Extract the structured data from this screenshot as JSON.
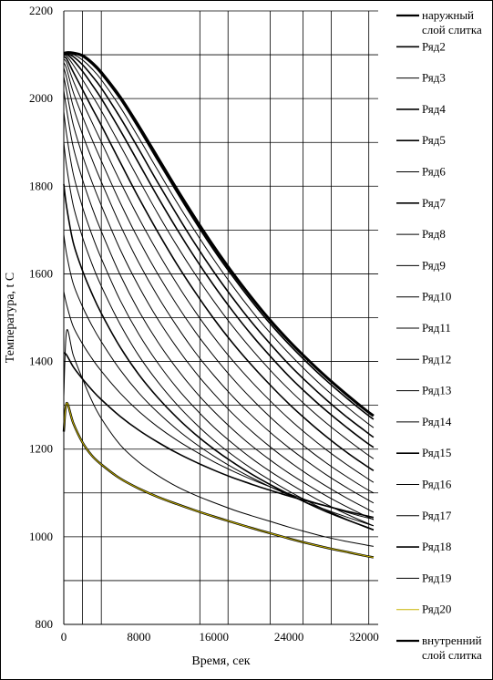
{
  "chart_data": {
    "type": "line",
    "title": "",
    "xlabel": "Время, сек",
    "ylabel": "Температура, t С",
    "xlim": [
      0,
      33500
    ],
    "ylim": [
      800,
      2200
    ],
    "x_ticks": [
      0,
      8000,
      16000,
      24000,
      32000
    ],
    "y_ticks": [
      800,
      1000,
      1200,
      1400,
      1600,
      1800,
      2000,
      2200
    ],
    "x_grid": [
      0,
      2000,
      4000,
      14500,
      17500,
      22000,
      25500,
      28500,
      32500
    ],
    "y_grid": [
      900,
      1000,
      1100,
      1200,
      1300,
      1400,
      1500,
      1600,
      1700,
      1800,
      1900,
      2000,
      2100,
      2200
    ],
    "legend_position": "right",
    "x": [
      0,
      300,
      1000,
      2000,
      3000,
      4000,
      6000,
      8000,
      10000,
      12000,
      14000,
      16000,
      18000,
      20000,
      22000,
      24000,
      26000,
      28000,
      30000,
      32000,
      33000
    ],
    "series": [
      {
        "name": "наружный слой слитка",
        "color": "#000000",
        "width": 3.0,
        "values": [
          2103,
          2105,
          2104,
          2098,
          2082,
          2060,
          2004,
          1937,
          1866,
          1795,
          1727,
          1662,
          1602,
          1546,
          1494,
          1447,
          1404,
          1364,
          1327,
          1292,
          1276
        ]
      },
      {
        "name": "Ряд2",
        "color": "#000000",
        "width": 1.6,
        "values": [
          2103,
          2105,
          2104,
          2096,
          2079,
          2056,
          1999,
          1931,
          1859,
          1788,
          1719,
          1654,
          1594,
          1538,
          1486,
          1439,
          1396,
          1356,
          1319,
          1284,
          1268
        ]
      },
      {
        "name": "Ряд3",
        "color": "#000000",
        "width": 1.0,
        "values": [
          2102,
          2104,
          2101,
          2088,
          2068,
          2043,
          1981,
          1910,
          1837,
          1765,
          1697,
          1632,
          1572,
          1516,
          1465,
          1418,
          1375,
          1335,
          1299,
          1265,
          1249
        ]
      },
      {
        "name": "Ряд4",
        "color": "#000000",
        "width": 1.6,
        "values": [
          2101,
          2103,
          2096,
          2077,
          2052,
          2024,
          1957,
          1884,
          1809,
          1737,
          1668,
          1604,
          1545,
          1490,
          1440,
          1393,
          1351,
          1312,
          1276,
          1243,
          1227
        ]
      },
      {
        "name": "Ряд5",
        "color": "#000000",
        "width": 1.6,
        "values": [
          2100,
          2101,
          2088,
          2062,
          2032,
          2000,
          1928,
          1852,
          1776,
          1704,
          1636,
          1573,
          1515,
          1461,
          1412,
          1366,
          1325,
          1287,
          1252,
          1219,
          1204
        ]
      },
      {
        "name": "Ряд6",
        "color": "#000000",
        "width": 1.0,
        "values": [
          2098,
          2097,
          2077,
          2043,
          2008,
          1972,
          1894,
          1815,
          1738,
          1666,
          1599,
          1537,
          1480,
          1428,
          1380,
          1336,
          1296,
          1259,
          1225,
          1193,
          1178
        ]
      },
      {
        "name": "Ряд7",
        "color": "#000000",
        "width": 1.6,
        "values": [
          2095,
          2091,
          2061,
          2020,
          1979,
          1939,
          1855,
          1773,
          1696,
          1624,
          1558,
          1497,
          1442,
          1392,
          1346,
          1303,
          1264,
          1228,
          1195,
          1165,
          1151
        ]
      },
      {
        "name": "Ряд8",
        "color": "#000000",
        "width": 1.0,
        "values": [
          2090,
          2082,
          2041,
          1992,
          1946,
          1901,
          1811,
          1727,
          1650,
          1579,
          1514,
          1455,
          1402,
          1354,
          1310,
          1269,
          1232,
          1198,
          1167,
          1138,
          1124
        ]
      },
      {
        "name": "Ряд9",
        "color": "#000000",
        "width": 1.0,
        "values": [
          2082,
          2068,
          2015,
          1959,
          1907,
          1858,
          1763,
          1677,
          1600,
          1531,
          1468,
          1412,
          1361,
          1315,
          1273,
          1235,
          1200,
          1168,
          1139,
          1112,
          1100
        ]
      },
      {
        "name": "Ряд10",
        "color": "#000000",
        "width": 1.0,
        "values": [
          2070,
          2047,
          1982,
          1918,
          1862,
          1810,
          1712,
          1625,
          1549,
          1482,
          1421,
          1368,
          1320,
          1277,
          1238,
          1203,
          1171,
          1141,
          1114,
          1089,
          1077
        ]
      },
      {
        "name": "Ряд11",
        "color": "#000000",
        "width": 1.0,
        "values": [
          2050,
          2017,
          1941,
          1870,
          1810,
          1756,
          1656,
          1571,
          1497,
          1433,
          1376,
          1326,
          1281,
          1241,
          1205,
          1172,
          1142,
          1115,
          1090,
          1067,
          1056
        ]
      },
      {
        "name": "Ряд12",
        "color": "#000000",
        "width": 1.0,
        "values": [
          2018,
          1975,
          1890,
          1815,
          1752,
          1697,
          1598,
          1515,
          1445,
          1385,
          1332,
          1286,
          1245,
          1208,
          1175,
          1145,
          1118,
          1093,
          1070,
          1049,
          1039
        ]
      },
      {
        "name": "Ряд13",
        "color": "#000000",
        "width": 1.0,
        "values": [
          1970,
          1918,
          1829,
          1752,
          1689,
          1635,
          1540,
          1462,
          1397,
          1341,
          1293,
          1250,
          1213,
          1179,
          1149,
          1122,
          1097,
          1074,
          1053,
          1034,
          1025
        ]
      },
      {
        "name": "Ряд14",
        "color": "#000000",
        "width": 1.0,
        "values": [
          1900,
          1845,
          1757,
          1683,
          1623,
          1572,
          1485,
          1413,
          1354,
          1303,
          1259,
          1220,
          1186,
          1156,
          1129,
          1104,
          1081,
          1060,
          1041,
          1023,
          1015
        ]
      },
      {
        "name": "Ряд15",
        "color": "#000000",
        "width": 1.6,
        "values": [
          1805,
          1753,
          1672,
          1607,
          1555,
          1510,
          1433,
          1370,
          1318,
          1273,
          1234,
          1200,
          1170,
          1143,
          1119,
          1097,
          1076,
          1057,
          1040,
          1024,
          1016
        ]
      },
      {
        "name": "Ряд16",
        "color": "#000000",
        "width": 1.0,
        "values": [
          1690,
          1645,
          1578,
          1525,
          1482,
          1445,
          1381,
          1328,
          1284,
          1246,
          1213,
          1184,
          1158,
          1135,
          1114,
          1095,
          1077,
          1061,
          1046,
          1032,
          1025
        ]
      },
      {
        "name": "Ряд17",
        "color": "#000000",
        "width": 1.0,
        "values": [
          1560,
          1530,
          1480,
          1440,
          1407,
          1378,
          1328,
          1286,
          1251,
          1221,
          1195,
          1171,
          1150,
          1131,
          1114,
          1098,
          1083,
          1070,
          1057,
          1045,
          1040
        ]
      },
      {
        "name": "Ряд18",
        "color": "#000000",
        "width": 1.6,
        "values": [
          1420,
          1415,
          1388,
          1360,
          1335,
          1313,
          1275,
          1243,
          1216,
          1192,
          1171,
          1152,
          1135,
          1120,
          1106,
          1093,
          1081,
          1070,
          1059,
          1049,
          1044
        ]
      },
      {
        "name": "Ряд19",
        "color": "#000000",
        "width": 1.0,
        "values": [
          1320,
          1470,
          1415,
          1360,
          1310,
          1270,
          1210,
          1170,
          1140,
          1115,
          1095,
          1078,
          1062,
          1048,
          1035,
          1022,
          1010,
          999,
          990,
          982,
          978
        ]
      },
      {
        "name": "Ряд20",
        "color": "#c8b400",
        "width": 1.0,
        "values": [
          1240,
          1305,
          1260,
          1215,
          1185,
          1165,
          1133,
          1110,
          1091,
          1075,
          1060,
          1046,
          1033,
          1020,
          1008,
          996,
          985,
          975,
          966,
          957,
          953
        ]
      },
      {
        "name": "внутренний слой слитка",
        "color": "#000000",
        "width": 2.4,
        "values": [
          1240,
          1305,
          1260,
          1215,
          1185,
          1165,
          1133,
          1110,
          1091,
          1075,
          1060,
          1046,
          1033,
          1020,
          1008,
          996,
          985,
          975,
          966,
          957,
          953
        ]
      }
    ]
  }
}
